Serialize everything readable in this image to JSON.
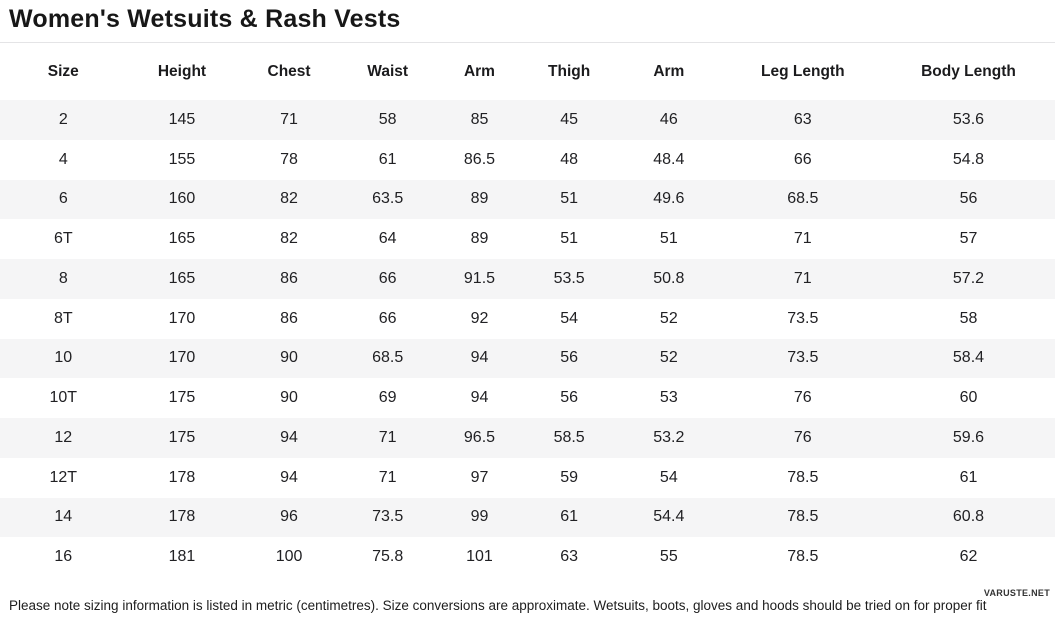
{
  "title": "Women's Wetsuits & Rash Vests",
  "table": {
    "columns": [
      "Size",
      "Height",
      "Chest",
      "Waist",
      "Arm",
      "Thigh",
      "Arm",
      "Leg Length",
      "Body Length"
    ],
    "rows": [
      [
        "2",
        "145",
        "71",
        "58",
        "85",
        "45",
        "46",
        "63",
        "53.6"
      ],
      [
        "4",
        "155",
        "78",
        "61",
        "86.5",
        "48",
        "48.4",
        "66",
        "54.8"
      ],
      [
        "6",
        "160",
        "82",
        "63.5",
        "89",
        "51",
        "49.6",
        "68.5",
        "56"
      ],
      [
        "6T",
        "165",
        "82",
        "64",
        "89",
        "51",
        "51",
        "71",
        "57"
      ],
      [
        "8",
        "165",
        "86",
        "66",
        "91.5",
        "53.5",
        "50.8",
        "71",
        "57.2"
      ],
      [
        "8T",
        "170",
        "86",
        "66",
        "92",
        "54",
        "52",
        "73.5",
        "58"
      ],
      [
        "10",
        "170",
        "90",
        "68.5",
        "94",
        "56",
        "52",
        "73.5",
        "58.4"
      ],
      [
        "10T",
        "175",
        "90",
        "69",
        "94",
        "56",
        "53",
        "76",
        "60"
      ],
      [
        "12",
        "175",
        "94",
        "71",
        "96.5",
        "58.5",
        "53.2",
        "76",
        "59.6"
      ],
      [
        "12T",
        "178",
        "94",
        "71",
        "97",
        "59",
        "54",
        "78.5",
        "61"
      ],
      [
        "14",
        "178",
        "96",
        "73.5",
        "99",
        "61",
        "54.4",
        "78.5",
        "60.8"
      ],
      [
        "16",
        "181",
        "100",
        "75.8",
        "101",
        "63",
        "55",
        "78.5",
        "62"
      ]
    ]
  },
  "footer": {
    "note": "Please note sizing information is listed in metric (centimetres). Size conversions are approximate. Wetsuits, boots, gloves and hoods should be tried on for proper fit",
    "watermark": "VARUSTE.NET"
  },
  "colors": {
    "text": "#1e1e1e",
    "stripe": "#f5f5f6",
    "divider": "#e4e4e6",
    "background": "#ffffff"
  }
}
